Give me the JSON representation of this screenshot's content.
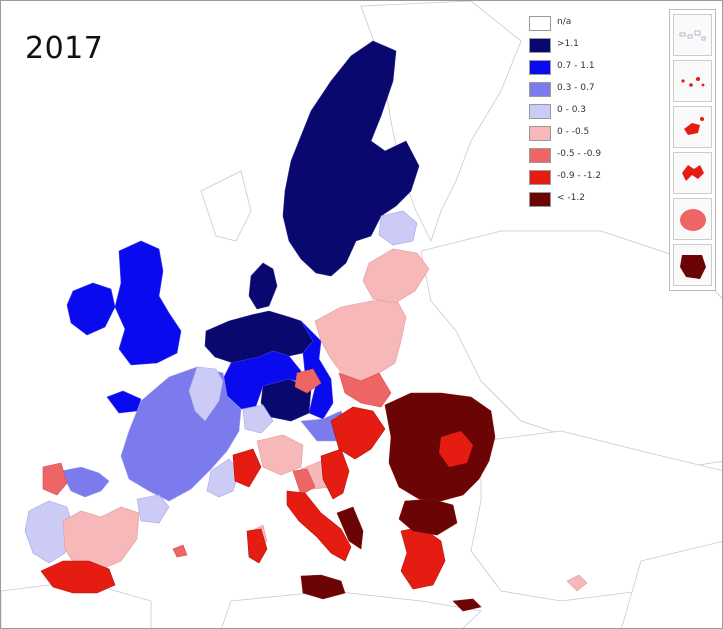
{
  "year": "2017",
  "legend": [
    {
      "label": "n/a",
      "color": "#ffffff"
    },
    {
      "label": ">1.1",
      "color": "#08086e"
    },
    {
      "label": "0.7 - 1.1",
      "color": "#0a0aee"
    },
    {
      "label": "0.3 - 0.7",
      "color": "#7b7bee"
    },
    {
      "label": "0 - 0.3",
      "color": "#cbcbf6"
    },
    {
      "label": "0 -  -0.5",
      "color": "#f6b8b8"
    },
    {
      "label": "-0.5 -  -0.9",
      "color": "#ee6565"
    },
    {
      "label": "-0.9 - -1.2",
      "color": "#e51c12"
    },
    {
      "label": "< -1.2",
      "color": "#6b0404"
    }
  ],
  "colors": {
    "sea": "#ffffff",
    "non_eu_land": "#ffffff",
    "border": "#b9b9c9",
    "frame": "#9a9a9a"
  },
  "insets": [
    "canary-islands",
    "azores",
    "madeira",
    "guadeloupe",
    "reunion",
    "french-guiana"
  ]
}
